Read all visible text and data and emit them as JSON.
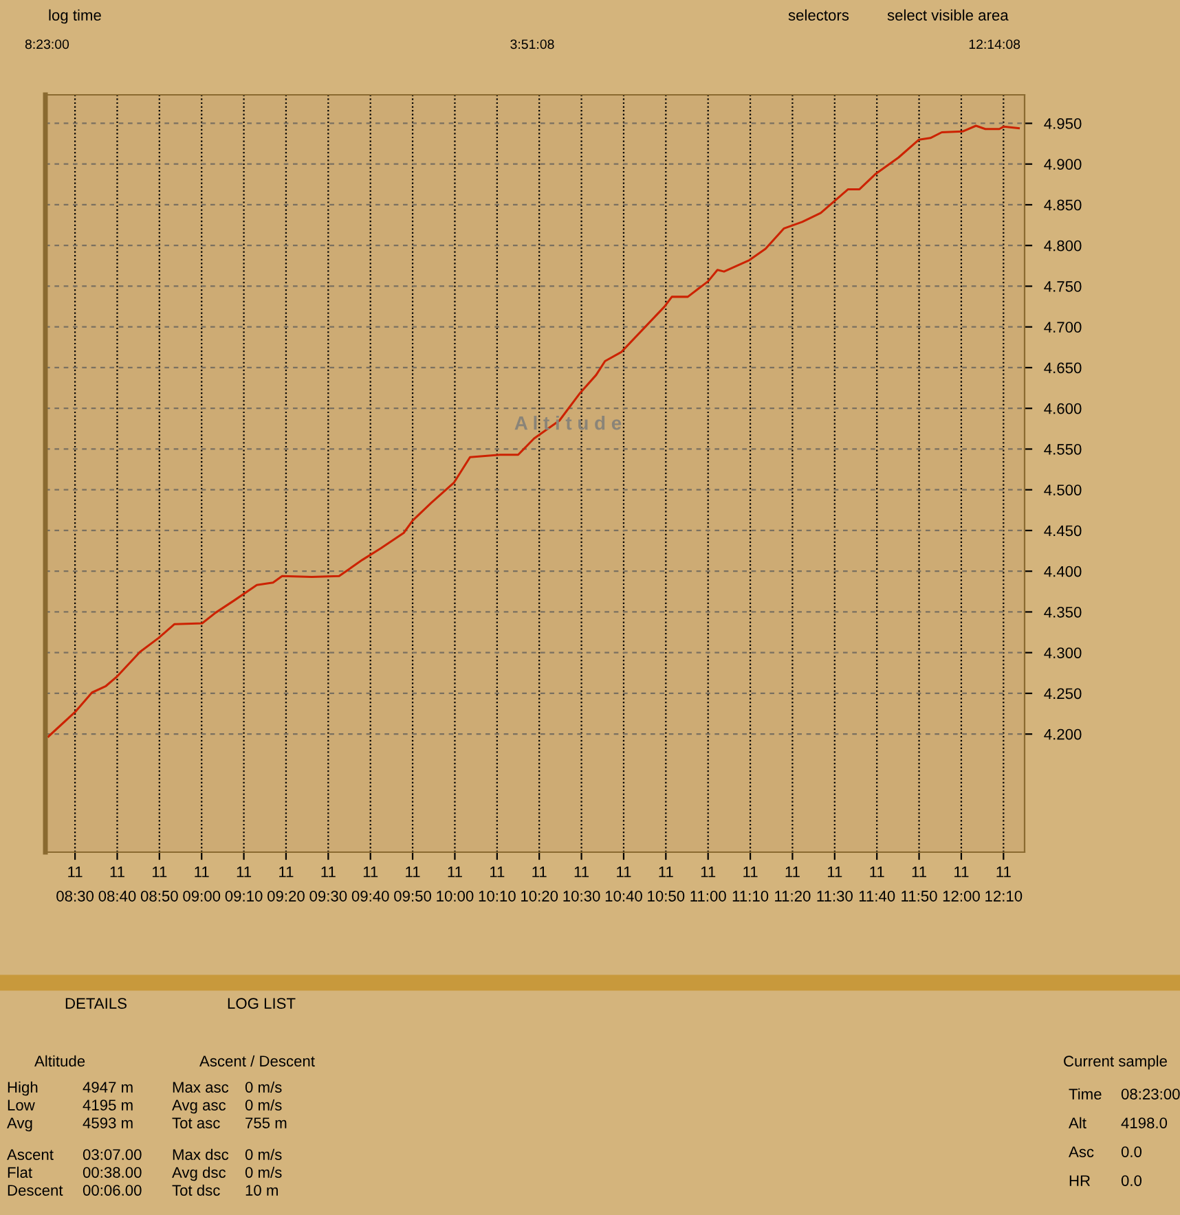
{
  "chart_data": {
    "type": "line",
    "x": [
      8.395,
      8.503,
      8.567,
      8.622,
      8.667,
      8.757,
      8.83,
      8.893,
      9.002,
      9.055,
      9.128,
      9.218,
      9.282,
      9.318,
      9.435,
      9.543,
      9.635,
      9.707,
      9.798,
      9.833,
      9.907,
      9.997,
      10.06,
      10.178,
      10.25,
      10.313,
      10.413,
      10.495,
      10.558,
      10.593,
      10.657,
      10.828,
      10.857,
      10.92,
      11.0,
      11.037,
      11.063,
      11.163,
      11.227,
      11.3,
      11.372,
      11.445,
      11.553,
      11.598,
      11.662,
      11.752,
      11.833,
      11.878,
      11.923,
      12.005,
      12.058,
      12.095,
      12.15,
      12.168,
      12.227
    ],
    "series": [
      {
        "color": "#cc2200",
        "values": [
          4.197,
          4.228,
          4.251,
          4.259,
          4.271,
          4.301,
          4.318,
          4.335,
          4.336,
          4.349,
          4.364,
          4.383,
          4.386,
          4.394,
          4.393,
          4.394,
          4.414,
          4.428,
          4.447,
          4.462,
          4.484,
          4.509,
          4.54,
          4.543,
          4.543,
          4.563,
          4.585,
          4.619,
          4.641,
          4.658,
          4.669,
          4.725,
          4.737,
          4.737,
          4.756,
          4.77,
          4.768,
          4.782,
          4.796,
          4.821,
          4.829,
          4.84,
          4.869,
          4.869,
          4.888,
          4.908,
          4.93,
          4.932,
          4.939,
          4.94,
          4.947,
          4.943,
          4.943,
          4.946,
          4.944
        ]
      }
    ],
    "xlim": [
      8.383,
      12.25
    ],
    "xticks": [
      {
        "value": 8.5,
        "label": "08:30"
      },
      {
        "value": 8.6667,
        "label": "08:40"
      },
      {
        "value": 8.8333,
        "label": "08:50"
      },
      {
        "value": 9.0,
        "label": "09:00"
      },
      {
        "value": 9.1667,
        "label": "09:10"
      },
      {
        "value": 9.3333,
        "label": "09:20"
      },
      {
        "value": 9.5,
        "label": "09:30"
      },
      {
        "value": 9.6667,
        "label": "09:40"
      },
      {
        "value": 9.8333,
        "label": "09:50"
      },
      {
        "value": 10.0,
        "label": "10:00"
      },
      {
        "value": 10.1667,
        "label": "10:10"
      },
      {
        "value": 10.3333,
        "label": "10:20"
      },
      {
        "value": 10.5,
        "label": "10:30"
      },
      {
        "value": 10.6667,
        "label": "10:40"
      },
      {
        "value": 10.8333,
        "label": "10:50"
      },
      {
        "value": 11.0,
        "label": "11:00"
      },
      {
        "value": 11.1667,
        "label": "11:10"
      },
      {
        "value": 11.3333,
        "label": "11:20"
      },
      {
        "value": 11.5,
        "label": "11:30"
      },
      {
        "value": 11.6667,
        "label": "11:40"
      },
      {
        "value": 11.8333,
        "label": "11:50"
      },
      {
        "value": 12.0,
        "label": "12:00"
      },
      {
        "value": 12.1667,
        "label": "12:10"
      }
    ],
    "ylim": [
      4.055,
      4.985
    ],
    "yticks": [
      {
        "value": 4.2,
        "label": "4.200"
      },
      {
        "value": 4.25,
        "label": "4.250"
      },
      {
        "value": 4.3,
        "label": "4.300"
      },
      {
        "value": 4.35,
        "label": "4.350"
      },
      {
        "value": 4.4,
        "label": "4.400"
      },
      {
        "value": 4.45,
        "label": "4.450"
      },
      {
        "value": 4.5,
        "label": "4.500"
      },
      {
        "value": 4.55,
        "label": "4.550"
      },
      {
        "value": 4.6,
        "label": "4.600"
      },
      {
        "value": 4.65,
        "label": "4.650"
      },
      {
        "value": 4.7,
        "label": "4.700"
      },
      {
        "value": 4.75,
        "label": "4.750"
      },
      {
        "value": 4.8,
        "label": "4.800"
      },
      {
        "value": 4.85,
        "label": "4.850"
      },
      {
        "value": 4.9,
        "label": "4.900"
      },
      {
        "value": 4.95,
        "label": "4.950"
      }
    ],
    "grid": true,
    "legend": false,
    "marker": "none",
    "line_style": "solid",
    "annotations": [
      "log time",
      "selectors",
      "select visible area",
      "8:23:00",
      "3:51:08",
      "12:14:08",
      "A l t i t u d e",
      "DETAILS",
      "LOG LIST",
      "Altitude",
      "Ascent / Descent",
      "Current sample",
      "High",
      "4947 m",
      "Low",
      "4195 m",
      "Avg",
      "4593 m",
      "Ascent",
      "03:07.00",
      "Flat",
      "00:38.00",
      "Descent",
      "00:06.00",
      "Max asc",
      "0 m/s",
      "Avg asc",
      "0 m/s",
      "Tot asc",
      "755 m",
      "Max dsc",
      "0 m/s",
      "Avg dsc",
      "0 m/s",
      "Tot dsc",
      "10 m",
      "Time",
      "08:23:00",
      "Alt",
      "4198.0",
      "Asc",
      "0.0",
      "HR",
      "0.0",
      "11",
      "11",
      "11",
      "11",
      "11",
      "11",
      "11",
      "11",
      "11",
      "11",
      "11",
      "11",
      "11",
      "11",
      "11",
      "11",
      "11",
      "11",
      "11",
      "11",
      "11",
      "11",
      "11"
    ]
  }
}
